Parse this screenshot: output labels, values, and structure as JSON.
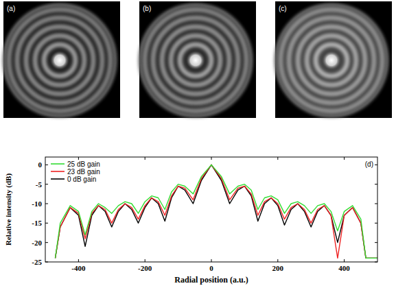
{
  "images": [
    {
      "label": "(a)"
    },
    {
      "label": "(b)"
    },
    {
      "label": "(c)"
    }
  ],
  "chart_data": {
    "type": "line",
    "annotations": [
      "(d)"
    ],
    "x_label": "Radial position (a.u.)",
    "y_label": "Relative intensity (dB)",
    "x": [
      -470,
      -455,
      -425,
      -400,
      -380,
      -360,
      -340,
      -320,
      -300,
      -280,
      -260,
      -240,
      -220,
      -200,
      -180,
      -160,
      -140,
      -120,
      -100,
      -80,
      -55,
      -30,
      0,
      30,
      55,
      80,
      100,
      120,
      140,
      160,
      180,
      200,
      220,
      240,
      260,
      280,
      300,
      320,
      340,
      360,
      380,
      400,
      425,
      450,
      465,
      500
    ],
    "series": [
      {
        "name": "25 dB gain",
        "color": "#33dd33",
        "values": [
          -24,
          -15,
          -10.5,
          -12,
          -18,
          -12,
          -10,
          -11,
          -12.5,
          -10.5,
          -9.5,
          -10,
          -12.5,
          -9.5,
          -8,
          -8.5,
          -11.5,
          -7,
          -5,
          -5.5,
          -7.5,
          -3,
          0,
          -3,
          -7.5,
          -5.5,
          -5,
          -6.5,
          -11.5,
          -8.5,
          -8,
          -9,
          -12.5,
          -10,
          -9.5,
          -10.5,
          -12.5,
          -10.5,
          -10,
          -12,
          -17,
          -12,
          -10.5,
          -14,
          -24,
          -24
        ]
      },
      {
        "name": "23 dB gain",
        "color": "#ee2222",
        "values": [
          -24,
          -16,
          -11,
          -12.5,
          -19,
          -12.5,
          -10.5,
          -11.5,
          -15,
          -11.5,
          -10,
          -11,
          -14,
          -10.5,
          -8.5,
          -9.5,
          -13,
          -8,
          -5.5,
          -6,
          -9,
          -3.5,
          0,
          -3.5,
          -9,
          -6,
          -5.5,
          -7.5,
          -13,
          -9.5,
          -8.5,
          -10,
          -14,
          -11,
          -10,
          -11.5,
          -15,
          -11.5,
          -10.5,
          -13,
          -24,
          -13,
          -11,
          -15,
          -24,
          -24
        ]
      },
      {
        "name": "0 dB gain",
        "color": "#000000",
        "values": [
          -24,
          -16,
          -11,
          -13,
          -21,
          -13,
          -10.5,
          -12,
          -16,
          -12,
          -10,
          -11.5,
          -15,
          -11,
          -8.5,
          -10,
          -14.5,
          -8.5,
          -5.5,
          -6.5,
          -10,
          -4,
          0,
          -4,
          -10,
          -6.5,
          -5.5,
          -8,
          -14.5,
          -10,
          -8.5,
          -10.5,
          -15.5,
          -11.5,
          -10,
          -12,
          -16,
          -12,
          -10.5,
          -13,
          -20,
          -13,
          -11,
          -15,
          -24,
          -24
        ]
      }
    ],
    "xlim": [
      -500,
      500
    ],
    "ylim": [
      -25,
      2
    ],
    "xticks": [
      -400,
      -200,
      0,
      200,
      400
    ],
    "yticks": [
      0,
      -5,
      -10,
      -15,
      -20,
      -25
    ],
    "legend": "upper-left",
    "grid": false
  }
}
